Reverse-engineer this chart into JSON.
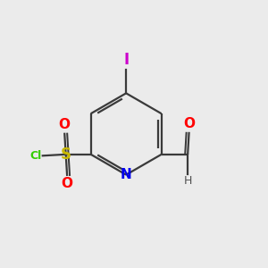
{
  "bg_color": "#ebebeb",
  "bond_color": "#3a3a3a",
  "atom_colors": {
    "N": "#0000ee",
    "O": "#ff0000",
    "S": "#c8b800",
    "Cl": "#33cc00",
    "I": "#cc00cc",
    "H": "#505050",
    "C": "#3a3a3a"
  },
  "font_size_main": 11,
  "font_size_small": 9,
  "font_size_I": 12
}
